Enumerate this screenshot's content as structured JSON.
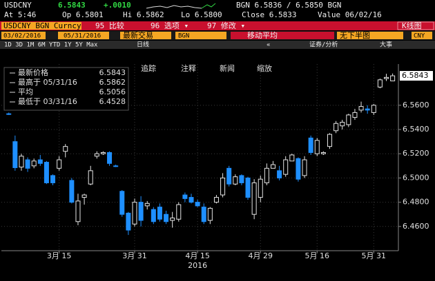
{
  "header": {
    "ticker": "USDCNY",
    "last": "6.5843",
    "change": "+.0010",
    "bid_ask": "BGN 6.5836 / 6.5850 BGN",
    "time": "At 5:46",
    "open": "Op 6.5801",
    "high": "Hi 6.5862",
    "low": "Lo 6.5800",
    "close": "Close 6.5833",
    "value_date": "Value 06/02/16"
  },
  "toolbar": {
    "security": "USDCNY BGN Curncy",
    "compare": "95 比较",
    "options": "96 选项 ▾",
    "edit": "97 修改 ▾",
    "chart_type": "K线图"
  },
  "settings": {
    "start_date": "03/02/2016",
    "end_date": "05/31/2016",
    "price_type": "最新交易",
    "source": "BGN",
    "moving_average": "移动平均",
    "lower_chart": "无下半图",
    "currency": "CNY"
  },
  "range": {
    "buttons": "1D 3D 1M 6M YTD 1Y 5Y Max",
    "frequency": "日线",
    "back": "«",
    "analysis": "证券/分析",
    "events": "大事"
  },
  "chart_tools": [
    "追踪",
    "注释",
    "新闻",
    "缩放"
  ],
  "chart_data": {
    "type": "candlestick",
    "categories": [
      null,
      null,
      null,
      null,
      null,
      null,
      null,
      null,
      "3月 15",
      null,
      null,
      null,
      null,
      null,
      null,
      null,
      null,
      null,
      null,
      null,
      "3月 31",
      null,
      null,
      null,
      null,
      null,
      null,
      null,
      null,
      null,
      "4月 15",
      null,
      null,
      null,
      null,
      null,
      null,
      null,
      null,
      null,
      "4月 29",
      null,
      null,
      null,
      null,
      null,
      null,
      null,
      null,
      "5月 16",
      null,
      null,
      null,
      null,
      null,
      null,
      null,
      null,
      "5月 31",
      null,
      null,
      null
    ],
    "open": [
      6.553,
      6.53,
      6.509,
      6.515,
      6.51,
      6.515,
      6.513,
      6.502,
      6.508,
      6.522,
      6.498,
      6.464,
      6.484,
      6.495,
      6.518,
      6.52,
      6.521,
      6.51,
      6.489,
      6.471,
      6.462,
      6.48,
      6.477,
      6.474,
      6.476,
      6.47,
      6.465,
      6.466,
      6.486,
      6.484,
      6.48,
      6.476,
      6.465,
      6.48,
      6.486,
      6.508,
      6.495,
      6.502,
      6.5,
      6.47,
      6.484,
      6.496,
      6.508,
      6.506,
      6.503,
      6.514,
      6.516,
      6.502,
      6.533,
      6.52,
      6.52,
      6.526,
      6.539,
      6.543,
      6.544,
      6.55,
      6.556,
      6.557,
      6.554,
      6.575,
      6.582,
      6.5801
    ],
    "high": [
      6.554,
      6.535,
      6.52,
      6.517,
      6.516,
      6.519,
      6.514,
      6.503,
      6.518,
      6.528,
      6.5,
      6.487,
      6.487,
      6.51,
      6.522,
      6.522,
      6.522,
      6.511,
      6.49,
      6.472,
      6.483,
      6.485,
      6.481,
      6.476,
      6.479,
      6.473,
      6.472,
      6.48,
      6.488,
      6.487,
      6.482,
      6.479,
      6.476,
      6.486,
      6.504,
      6.51,
      6.503,
      6.503,
      6.501,
      6.499,
      6.502,
      6.512,
      6.514,
      6.51,
      6.518,
      6.52,
      6.517,
      6.518,
      6.535,
      6.533,
      6.522,
      6.537,
      6.547,
      6.548,
      6.553,
      6.557,
      6.563,
      6.56,
      6.561,
      6.582,
      6.586,
      6.5862
    ],
    "low": [
      6.552,
      6.506,
      6.506,
      6.505,
      6.508,
      6.51,
      6.495,
      6.494,
      6.506,
      6.517,
      6.479,
      6.461,
      6.478,
      6.494,
      6.516,
      6.519,
      6.51,
      6.509,
      6.468,
      6.453,
      6.46,
      6.46,
      6.474,
      6.462,
      6.464,
      6.462,
      6.459,
      6.464,
      6.48,
      6.479,
      6.476,
      6.462,
      6.462,
      6.479,
      6.484,
      6.493,
      6.494,
      6.494,
      6.482,
      6.466,
      6.48,
      6.494,
      6.508,
      6.498,
      6.501,
      6.514,
      6.497,
      6.5,
      6.519,
      6.518,
      6.519,
      6.524,
      6.537,
      6.54,
      6.542,
      6.548,
      6.554,
      6.553,
      6.552,
      6.574,
      6.58,
      6.58
    ],
    "close": [
      6.5525,
      6.5085,
      6.518,
      6.508,
      6.514,
      6.512,
      6.496,
      6.496,
      6.515,
      6.526,
      6.48,
      6.481,
      6.486,
      6.506,
      6.52,
      6.521,
      6.512,
      6.5095,
      6.47,
      6.457,
      6.48,
      6.465,
      6.479,
      6.464,
      6.466,
      6.464,
      6.467,
      6.478,
      6.483,
      6.48,
      6.477,
      6.464,
      6.475,
      6.484,
      6.5,
      6.495,
      6.501,
      6.496,
      6.484,
      6.496,
      6.499,
      6.508,
      6.511,
      6.5,
      6.515,
      6.519,
      6.499,
      6.515,
      6.521,
      6.531,
      6.521,
      6.536,
      6.545,
      6.546,
      6.552,
      6.554,
      6.559,
      6.556,
      6.56,
      6.581,
      6.583,
      6.5843
    ],
    "up_color": "#e6e6e6",
    "down_color": "#1e8fff",
    "ylim": [
      6.44,
      6.594
    ],
    "yticks": [
      {
        "value": 6.46,
        "label": "6.4600"
      },
      {
        "value": 6.48,
        "label": "6.4800"
      },
      {
        "value": 6.5,
        "label": "6.5000"
      },
      {
        "value": 6.52,
        "label": "6.5200"
      },
      {
        "value": 6.54,
        "label": "6.5400"
      },
      {
        "value": 6.56,
        "label": "6.5600"
      }
    ],
    "last_value": 6.5843,
    "x_year_label": "2016",
    "grid": true,
    "legend": [
      {
        "label": "最新价格",
        "value": 6.5843
      },
      {
        "label": "最高于 05/31/16",
        "value": 6.5862
      },
      {
        "label": "平均",
        "value": 6.5056
      },
      {
        "label": "最低于 03/31/16",
        "value": 6.4528
      }
    ]
  }
}
